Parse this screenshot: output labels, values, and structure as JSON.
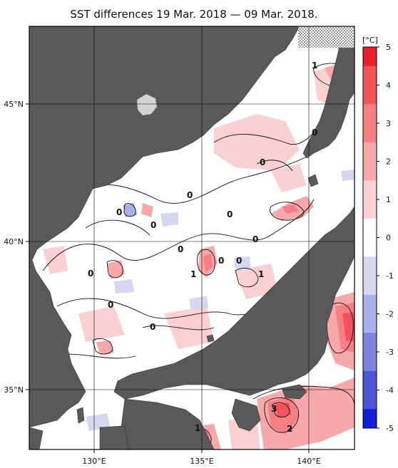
{
  "title": "SST differences 19 Mar. 2018 — 09 Mar. 2018.",
  "colorbar": {
    "unit": "[°C]",
    "ticks": [
      "5",
      "4",
      "3",
      "2",
      "1",
      "0",
      "-1",
      "-2",
      "-3",
      "-4",
      "-5"
    ],
    "range": [
      -5,
      5
    ],
    "colors": [
      "#e8202a",
      "#f0545a",
      "#f48085",
      "#f7a8ab",
      "#fbd0d2",
      "#ffffff",
      "#d6d8f2",
      "#aab0e8",
      "#7e86dc",
      "#4c56d2",
      "#1020d8"
    ]
  },
  "axes": {
    "lon_labels": [
      "130°E",
      "135°E",
      "140°E"
    ],
    "lat_labels": [
      "45°N",
      "40°N",
      "35°N"
    ],
    "lon_range": [
      127,
      142
    ],
    "lat_range": [
      33,
      47.5
    ]
  },
  "contour_labels": [
    "1",
    "0",
    "0",
    "0",
    "0",
    "0",
    "0",
    "0",
    "0",
    "0",
    "0",
    "0",
    "1",
    "1",
    "0",
    "0",
    "3",
    "2",
    "1"
  ],
  "colors": {
    "land": "#595959",
    "sea": "#ffffff",
    "frame": "#000000"
  }
}
